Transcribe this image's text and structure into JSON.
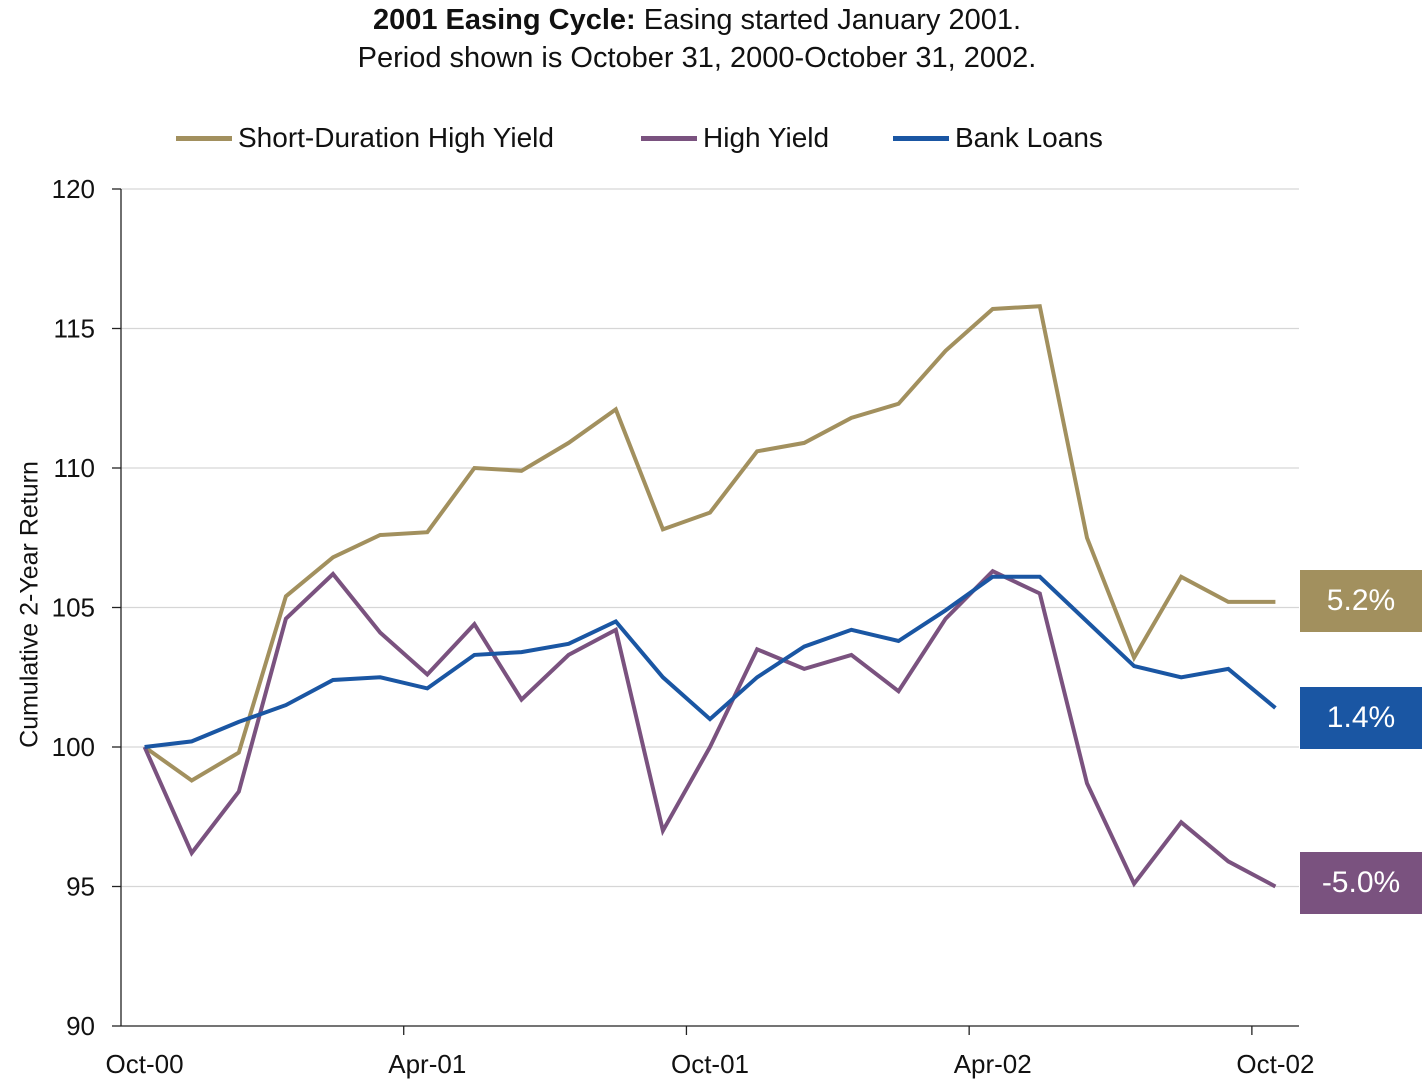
{
  "chart_data": {
    "type": "line",
    "title_bold": "2001 Easing Cycle:",
    "title_rest": " Easing started January 2001.",
    "subtitle": "Period shown is October 31, 2000-October 31, 2002.",
    "xlabel": "",
    "ylabel": "Cumulative 2-Year Return",
    "ylim": [
      90,
      120
    ],
    "yticks": [
      "90",
      "95",
      "100",
      "105",
      "110",
      "115",
      "120"
    ],
    "xtick_labels": [
      {
        "index": 0,
        "label": "Oct-00"
      },
      {
        "index": 6,
        "label": "Apr-01"
      },
      {
        "index": 12,
        "label": "Oct-01"
      },
      {
        "index": 18,
        "label": "Apr-02"
      },
      {
        "index": 24,
        "label": "Oct-02"
      }
    ],
    "grid": "horizontal",
    "legend_position": "top",
    "series": [
      {
        "name": "Short-Duration High Yield",
        "color": "#A2905E",
        "end_label": "5.2%",
        "values": [
          100,
          98.8,
          99.8,
          105.4,
          106.8,
          107.6,
          107.7,
          110.0,
          109.9,
          110.9,
          112.1,
          107.8,
          108.4,
          110.6,
          110.9,
          111.8,
          112.3,
          114.2,
          115.7,
          115.8,
          107.5,
          103.2,
          106.1,
          105.2,
          105.2
        ]
      },
      {
        "name": "High Yield",
        "color": "#7A527F",
        "end_label": "-5.0%",
        "values": [
          100,
          96.2,
          98.4,
          104.6,
          106.2,
          104.1,
          102.6,
          104.4,
          101.7,
          103.3,
          104.2,
          97.0,
          100.0,
          103.5,
          102.8,
          103.3,
          102.0,
          104.6,
          106.3,
          105.5,
          98.7,
          95.1,
          97.3,
          95.9,
          95.0
        ]
      },
      {
        "name": "Bank Loans",
        "color": "#1A56A3",
        "end_label": "1.4%",
        "values": [
          100,
          100.2,
          100.9,
          101.5,
          102.4,
          102.5,
          102.1,
          103.3,
          103.4,
          103.7,
          104.5,
          102.5,
          101.0,
          102.5,
          103.6,
          104.2,
          103.8,
          104.9,
          106.1,
          106.1,
          104.5,
          102.9,
          102.5,
          102.8,
          101.4
        ]
      }
    ]
  }
}
